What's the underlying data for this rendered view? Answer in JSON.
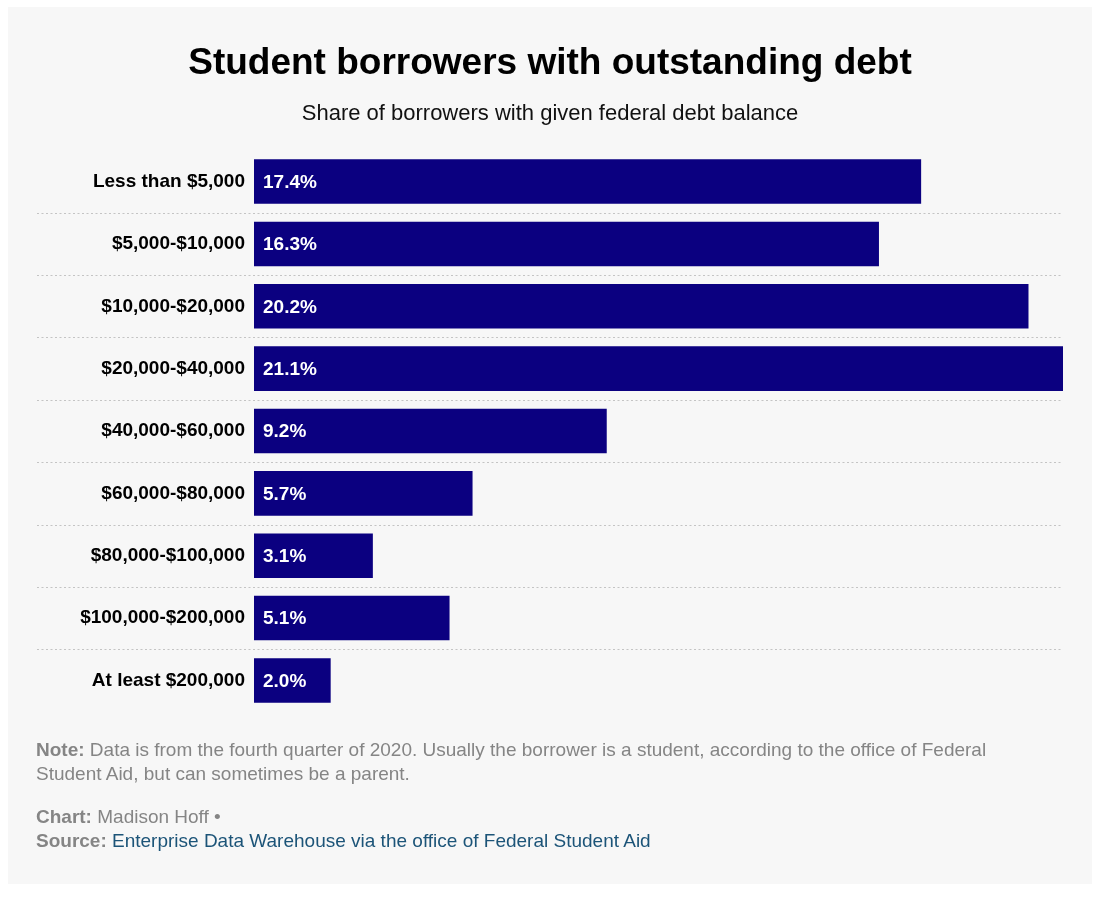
{
  "chart_data": {
    "type": "bar",
    "orientation": "horizontal",
    "title": "Student borrowers with outstanding debt",
    "subtitle": "Share of borrowers with given federal debt balance",
    "categories": [
      "Less than $5,000",
      "$5,000-$10,000",
      "$10,000-$20,000",
      "$20,000-$40,000",
      "$40,000-$60,000",
      "$60,000-$80,000",
      "$80,000-$100,000",
      "$100,000-$200,000",
      "At least $200,000"
    ],
    "values": [
      17.4,
      16.3,
      20.2,
      21.1,
      9.2,
      5.7,
      3.1,
      5.1,
      2.0
    ],
    "value_labels": [
      "17.4%",
      "16.3%",
      "20.2%",
      "21.1%",
      "9.2%",
      "5.7%",
      "3.1%",
      "5.1%",
      "2.0%"
    ],
    "color": "#0b0080",
    "grid": "y",
    "legend": false,
    "tick_labels": "y",
    "annotations": [
      "Note: Data is from the fourth quarter of 2020. Usually the borrower is a student, according to the office of Federal Student Aid, but can sometimes be a parent.",
      "Chart: Madison Hoff •",
      "Source: Enterprise Data Warehouse via the office of Federal Student Aid"
    ]
  }
}
